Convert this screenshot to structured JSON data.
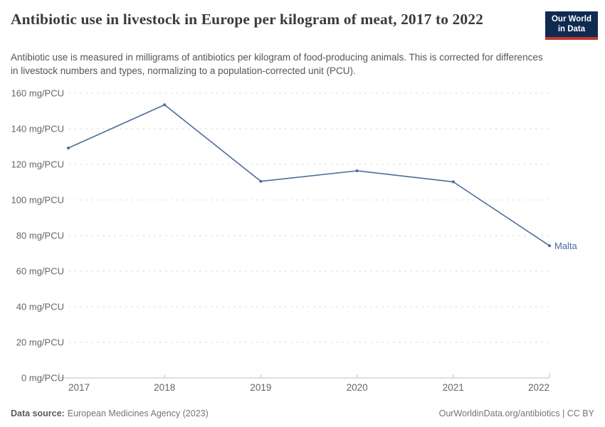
{
  "header": {
    "title": "Antibiotic use in livestock in Europe per kilogram of meat, 2017 to 2022",
    "subtitle": "Antibiotic use is measured in milligrams of antibiotics per kilogram of food-producing animals. This is corrected for differences in livestock numbers and types, normalizing to a population-corrected unit (PCU).",
    "logo": {
      "line1": "Our World",
      "line2": "in Data"
    }
  },
  "chart_data": {
    "type": "line",
    "title": "Antibiotic use in livestock in Europe per kilogram of meat, 2017 to 2022",
    "x": [
      2017,
      2018,
      2019,
      2020,
      2021,
      2022
    ],
    "series": [
      {
        "name": "Malta",
        "color": "#4c6a9c",
        "values": [
          129.2,
          153.5,
          110.5,
          116.4,
          110.2,
          74.3
        ]
      }
    ],
    "ylabel_unit": "mg/PCU",
    "ylim": [
      0,
      160
    ],
    "ytick_interval": 20,
    "grid": "dashed-horizontal",
    "legend_position": "end-of-line",
    "end_label": "Malta"
  },
  "footer": {
    "source_label": "Data source:",
    "source_text": "European Medicines Agency (2023)",
    "credit": "OurWorldinData.org/antibiotics | CC BY"
  },
  "colors": {
    "series_blue": "#4c6a9c",
    "logo_bg": "#102a52",
    "logo_accent": "#c0392b",
    "gridline": "#dcdcdc",
    "axis": "#c2c2c2",
    "tick_label": "#666666",
    "title_text": "#3b3b3b",
    "subtitle_text": "#555555",
    "footer_text": "#757575"
  }
}
